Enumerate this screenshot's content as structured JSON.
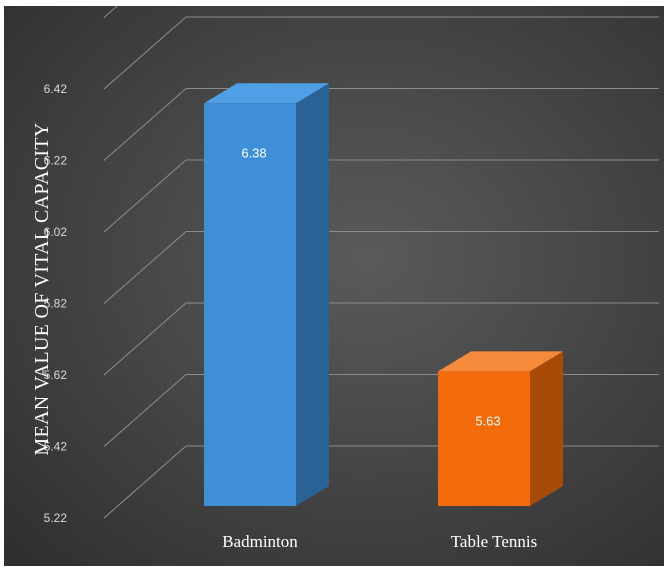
{
  "chart_data": {
    "type": "bar",
    "style": "3d-column",
    "categories": [
      "Badminton",
      "Table Tennis"
    ],
    "values": [
      6.38,
      5.63
    ],
    "data_labels": [
      "6.38",
      "5.63"
    ],
    "title": "",
    "xlabel": "",
    "ylabel": "MEAN VALUE OF VITAL CAPACITY",
    "ylim": [
      5.22,
      6.62
    ],
    "yticks": [
      "5.22",
      "5.42",
      "5.62",
      "5.82",
      "6.02",
      "6.22",
      "6.42"
    ],
    "grid": true,
    "colors": {
      "background": "#404040",
      "gridline": "#8c8c8c",
      "bar_front": [
        "#3f8fd8",
        "#f26b0a"
      ],
      "bar_side": [
        "#2b6296",
        "#a84a08"
      ],
      "bar_top": [
        "#4f9fe6",
        "#f58a3a"
      ]
    }
  }
}
